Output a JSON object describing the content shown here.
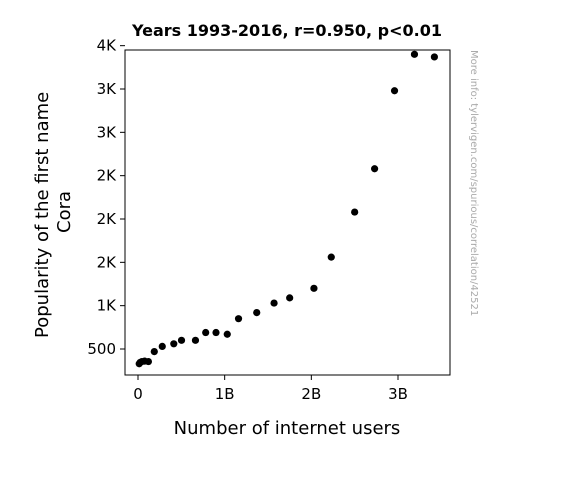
{
  "chart_data": {
    "type": "scatter",
    "title": "Years 1993-2016, r=0.950, p<0.01",
    "xlabel": "Number of internet users",
    "ylabel_lines": [
      "Popularity of the first name",
      "Cora"
    ],
    "watermark": "More info: tylervigen.com/spurious/correlation/42521",
    "xlim": [
      -150000000,
      3600000000
    ],
    "ylim": [
      200,
      3950
    ],
    "x_ticks": [
      {
        "value": 0,
        "label": "0"
      },
      {
        "value": 1000000000,
        "label": "1B"
      },
      {
        "value": 2000000000,
        "label": "2B"
      },
      {
        "value": 3000000000,
        "label": "3B"
      }
    ],
    "y_ticks": [
      {
        "value": 500,
        "label": "500"
      },
      {
        "value": 1000,
        "label": "1K"
      },
      {
        "value": 1500,
        "label": "2K"
      },
      {
        "value": 2000,
        "label": "2K"
      },
      {
        "value": 2500,
        "label": "2K"
      },
      {
        "value": 3000,
        "label": "3K"
      },
      {
        "value": 3500,
        "label": "3K"
      },
      {
        "value": 4000,
        "label": "4K"
      }
    ],
    "grid": false,
    "marker_color": "#000000",
    "points": [
      {
        "x": 14000000,
        "y": 330
      },
      {
        "x": 25000000,
        "y": 345
      },
      {
        "x": 45000000,
        "y": 355
      },
      {
        "x": 77000000,
        "y": 360
      },
      {
        "x": 120000000,
        "y": 355
      },
      {
        "x": 188000000,
        "y": 470
      },
      {
        "x": 280000000,
        "y": 530
      },
      {
        "x": 413000000,
        "y": 560
      },
      {
        "x": 502000000,
        "y": 600
      },
      {
        "x": 663000000,
        "y": 600
      },
      {
        "x": 781000000,
        "y": 690
      },
      {
        "x": 900000000,
        "y": 690
      },
      {
        "x": 1030000000,
        "y": 670
      },
      {
        "x": 1160000000,
        "y": 850
      },
      {
        "x": 1370000000,
        "y": 920
      },
      {
        "x": 1570000000,
        "y": 1030
      },
      {
        "x": 1750000000,
        "y": 1090
      },
      {
        "x": 2030000000,
        "y": 1200
      },
      {
        "x": 2230000000,
        "y": 1560
      },
      {
        "x": 2500000000,
        "y": 2080
      },
      {
        "x": 2730000000,
        "y": 2580
      },
      {
        "x": 2960000000,
        "y": 3480
      },
      {
        "x": 3190000000,
        "y": 3900
      },
      {
        "x": 3420000000,
        "y": 3870
      }
    ]
  }
}
